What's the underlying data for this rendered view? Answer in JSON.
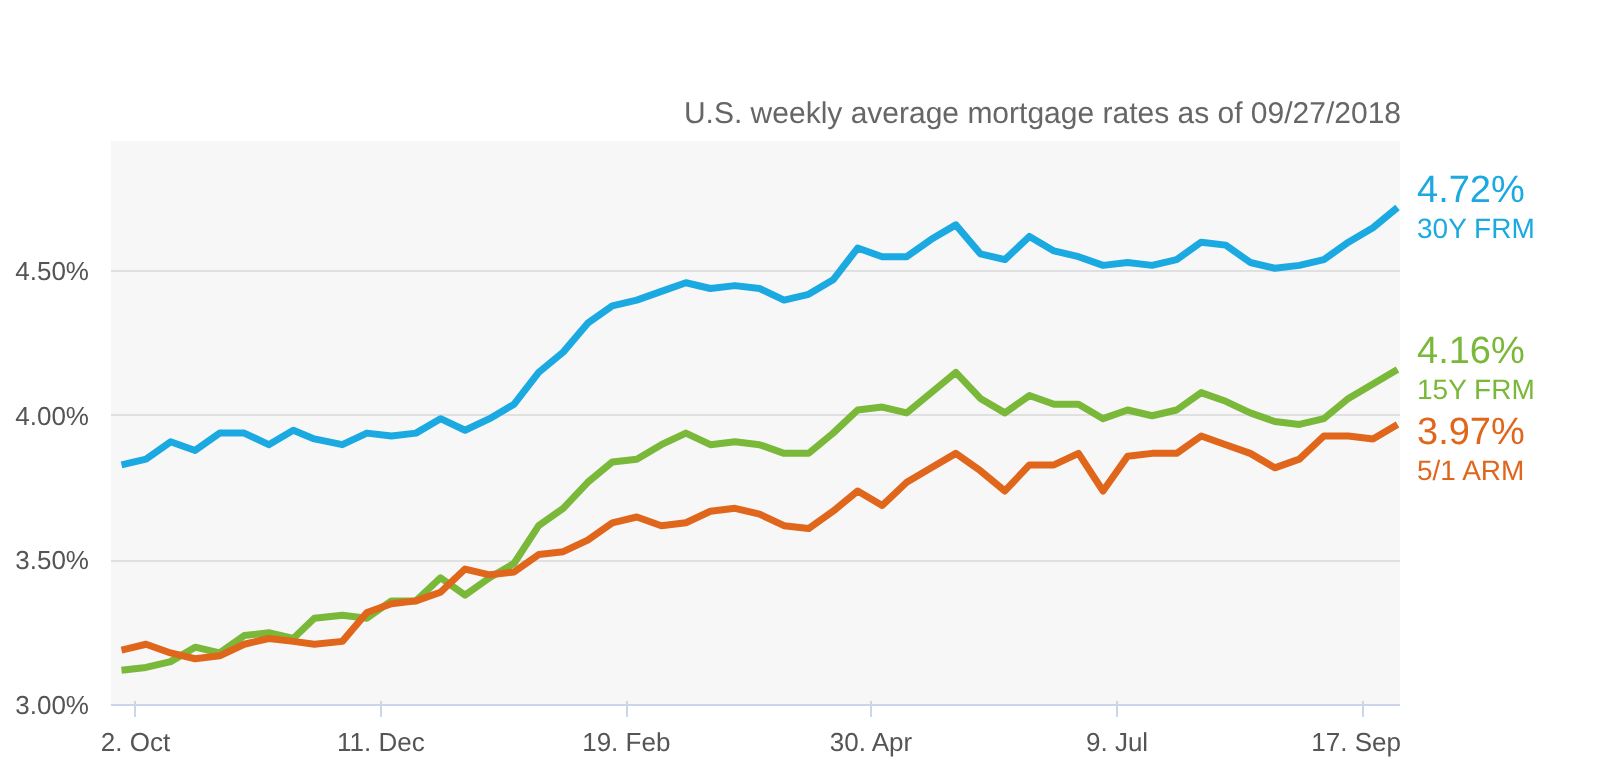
{
  "chart_data": {
    "type": "line",
    "subtitle": "U.S. weekly average mortgage rates as of 09/27/2018",
    "x": [
      "2017-09-28",
      "2017-10-05",
      "2017-10-12",
      "2017-10-19",
      "2017-10-26",
      "2017-11-02",
      "2017-11-09",
      "2017-11-16",
      "2017-11-22",
      "2017-11-30",
      "2017-12-07",
      "2017-12-14",
      "2017-12-21",
      "2017-12-28",
      "2018-01-04",
      "2018-01-11",
      "2018-01-18",
      "2018-01-25",
      "2018-02-01",
      "2018-02-08",
      "2018-02-15",
      "2018-02-22",
      "2018-03-01",
      "2018-03-08",
      "2018-03-15",
      "2018-03-22",
      "2018-03-29",
      "2018-04-05",
      "2018-04-12",
      "2018-04-19",
      "2018-04-26",
      "2018-05-03",
      "2018-05-10",
      "2018-05-17",
      "2018-05-24",
      "2018-05-31",
      "2018-06-07",
      "2018-06-14",
      "2018-06-21",
      "2018-06-28",
      "2018-07-05",
      "2018-07-12",
      "2018-07-19",
      "2018-07-26",
      "2018-08-02",
      "2018-08-09",
      "2018-08-16",
      "2018-08-23",
      "2018-08-30",
      "2018-09-06",
      "2018-09-13",
      "2018-09-20",
      "2018-09-27"
    ],
    "series": [
      {
        "name": "30Y FRM",
        "color": "#1ba9e1",
        "values": [
          3.83,
          3.85,
          3.91,
          3.88,
          3.94,
          3.94,
          3.9,
          3.95,
          3.92,
          3.9,
          3.94,
          3.93,
          3.94,
          3.99,
          3.95,
          3.99,
          4.04,
          4.15,
          4.22,
          4.32,
          4.38,
          4.4,
          4.43,
          4.46,
          4.44,
          4.45,
          4.44,
          4.4,
          4.42,
          4.47,
          4.58,
          4.55,
          4.55,
          4.61,
          4.66,
          4.56,
          4.54,
          4.62,
          4.57,
          4.55,
          4.52,
          4.53,
          4.52,
          4.54,
          4.6,
          4.59,
          4.53,
          4.51,
          4.52,
          4.54,
          4.6,
          4.65,
          4.72
        ],
        "value_labels": [
          null,
          null,
          null,
          null,
          null,
          null,
          null,
          null,
          null,
          null,
          null,
          null,
          null,
          null,
          null,
          null,
          null,
          null,
          null,
          null,
          null,
          null,
          null,
          null,
          null,
          null,
          null,
          null,
          null,
          null,
          null,
          null,
          null,
          null,
          null,
          null,
          null,
          null,
          null,
          null,
          null,
          null,
          null,
          null,
          null,
          null,
          null,
          null,
          null,
          null,
          null,
          null,
          "4.72%"
        ]
      },
      {
        "name": "15Y FRM",
        "color": "#7ab83a",
        "values": [
          3.12,
          3.13,
          3.15,
          3.2,
          3.18,
          3.24,
          3.25,
          3.23,
          3.3,
          3.31,
          3.3,
          3.36,
          3.36,
          3.44,
          3.38,
          3.44,
          3.49,
          3.62,
          3.68,
          3.77,
          3.84,
          3.85,
          3.9,
          3.94,
          3.9,
          3.91,
          3.9,
          3.87,
          3.87,
          3.94,
          4.02,
          4.03,
          4.01,
          4.08,
          4.15,
          4.06,
          4.01,
          4.07,
          4.04,
          4.04,
          3.99,
          4.02,
          4.0,
          4.02,
          4.08,
          4.05,
          4.01,
          3.98,
          3.97,
          3.99,
          4.06,
          4.11,
          4.16
        ],
        "value_labels": [
          null,
          null,
          null,
          null,
          null,
          null,
          null,
          null,
          null,
          null,
          null,
          null,
          null,
          null,
          null,
          null,
          null,
          null,
          null,
          null,
          null,
          null,
          null,
          null,
          null,
          null,
          null,
          null,
          null,
          null,
          null,
          null,
          null,
          null,
          null,
          null,
          null,
          null,
          null,
          null,
          null,
          null,
          null,
          null,
          null,
          null,
          null,
          null,
          null,
          null,
          null,
          null,
          "4.16%"
        ]
      },
      {
        "name": "5/1 ARM",
        "color": "#e0661c",
        "values": [
          3.19,
          3.21,
          3.18,
          3.16,
          3.17,
          3.21,
          3.23,
          3.22,
          3.21,
          3.22,
          3.32,
          3.35,
          3.36,
          3.39,
          3.47,
          3.45,
          3.46,
          3.52,
          3.53,
          3.57,
          3.63,
          3.65,
          3.62,
          3.63,
          3.67,
          3.68,
          3.66,
          3.62,
          3.61,
          3.67,
          3.74,
          3.69,
          3.77,
          3.82,
          3.87,
          3.81,
          3.74,
          3.83,
          3.83,
          3.87,
          3.74,
          3.86,
          3.87,
          3.87,
          3.93,
          3.9,
          3.87,
          3.82,
          3.85,
          3.93,
          3.93,
          3.92,
          3.97
        ],
        "value_labels": [
          null,
          null,
          null,
          null,
          null,
          null,
          null,
          null,
          null,
          null,
          null,
          null,
          null,
          null,
          null,
          null,
          null,
          null,
          null,
          null,
          null,
          null,
          null,
          null,
          null,
          null,
          null,
          null,
          null,
          null,
          null,
          null,
          null,
          null,
          null,
          null,
          null,
          null,
          null,
          null,
          null,
          null,
          null,
          null,
          null,
          null,
          null,
          null,
          null,
          null,
          null,
          null,
          "3.97%"
        ]
      }
    ],
    "xlim": [
      "2017-09-25",
      "2018-09-28"
    ],
    "xticks": [
      {
        "value": "2017-10-02",
        "label": "2. Oct"
      },
      {
        "value": "2017-12-11",
        "label": "11. Dec"
      },
      {
        "value": "2018-02-19",
        "label": "19. Feb"
      },
      {
        "value": "2018-04-30",
        "label": "30. Apr"
      },
      {
        "value": "2018-07-09",
        "label": "9. Jul"
      },
      {
        "value": "2018-09-17",
        "label": "17. Sep"
      }
    ],
    "ylim": [
      3.0,
      4.95
    ],
    "yticks": [
      {
        "value": 3.0,
        "label": "3.00%"
      },
      {
        "value": 3.5,
        "label": "3.50%"
      },
      {
        "value": 4.0,
        "label": "4.00%"
      },
      {
        "value": 4.5,
        "label": "4.50%"
      }
    ],
    "grid": "y",
    "marker": "none",
    "line_style": "solid"
  }
}
